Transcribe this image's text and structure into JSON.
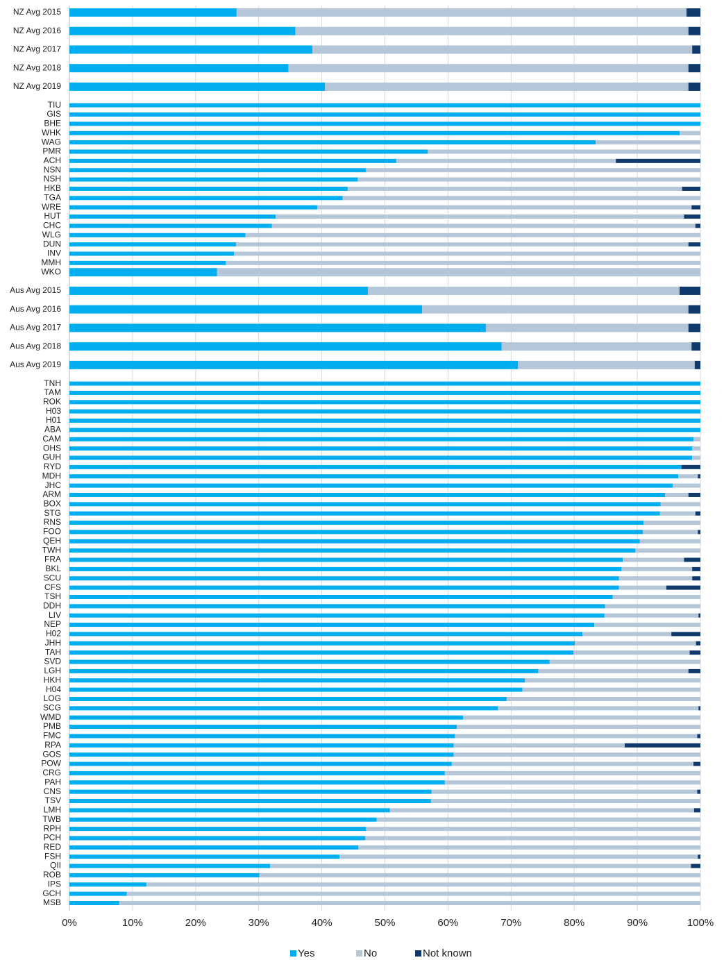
{
  "chart_data": {
    "type": "stacked_barh",
    "categories": [
      "NZ Avg 2015",
      null,
      "NZ Avg 2016",
      null,
      "NZ Avg 2017",
      null,
      "NZ Avg 2018",
      null,
      "NZ Avg 2019",
      null,
      "TIU",
      "GIS",
      "BHE",
      "WHK",
      "WAG",
      "PMR",
      "ACH",
      "NSN",
      "NSH",
      "HKB",
      "TGA",
      "WRE",
      "HUT",
      "CHC",
      "WLG",
      "DUN",
      "INV",
      "MMH",
      "WKO",
      null,
      "Aus Avg 2015",
      null,
      "Aus Avg 2016",
      null,
      "Aus Avg 2017",
      null,
      "Aus Avg 2018",
      null,
      "Aus Avg 2019",
      null,
      "TNH",
      "TAM",
      "ROK",
      "H03",
      "H01",
      "ABA",
      "CAM",
      "OHS",
      "GUH",
      "RYD",
      "MDH",
      "JHC",
      "ARM",
      "BOX",
      "STG",
      "RNS",
      "FOO",
      "QEH",
      "TWH",
      "FRA",
      "BKL",
      "SCU",
      "CFS",
      "TSH",
      "DDH",
      "LIV",
      "NEP",
      "H02",
      "JHH",
      "TAH",
      "SVD",
      "LGH",
      "HKH",
      "H04",
      "LOG",
      "SCG",
      "WMD",
      "PMB",
      "FMC",
      "RPA",
      "GOS",
      "POW",
      "CRG",
      "PAH",
      "CNS",
      "TSV",
      "LMH",
      "TWB",
      "RPH",
      "PCH",
      "RED",
      "FSH",
      "QII",
      "ROB",
      "IPS",
      "GCH",
      "MSB"
    ],
    "series": [
      {
        "name": "Yes",
        "color": "#00aeef",
        "values": [
          26.5,
          null,
          35.8,
          null,
          38.5,
          null,
          34.7,
          null,
          40.5,
          null,
          100,
          100,
          100,
          96.7,
          83.4,
          56.8,
          51.8,
          47,
          45.7,
          44.1,
          43.3,
          39.3,
          32.7,
          32.1,
          27.9,
          26.4,
          26.1,
          24.8,
          23.4,
          null,
          47.3,
          null,
          55.9,
          null,
          66,
          null,
          68.5,
          null,
          71.1,
          null,
          100,
          100,
          100,
          100,
          100,
          100,
          98.9,
          98.7,
          98.7,
          97,
          96.5,
          95.6,
          94.4,
          93.7,
          93.6,
          91,
          90.9,
          90.4,
          89.7,
          87.7,
          87.5,
          87.1,
          87.1,
          86.1,
          84.9,
          84.8,
          83.2,
          81.3,
          80.1,
          79.9,
          76.1,
          74.3,
          72.2,
          71.8,
          69.3,
          67.9,
          62.4,
          61.4,
          61.1,
          60.9,
          60.9,
          60.6,
          59.5,
          59.5,
          57.4,
          57.3,
          50.8,
          48.7,
          47,
          46.9,
          45.8,
          42.8,
          31.8,
          30.1,
          12.2,
          9.1,
          7.9
        ]
      },
      {
        "name": "No",
        "color": "#b4c6d8",
        "values": [
          71.3,
          null,
          62.3,
          null,
          60.2,
          null,
          63.4,
          null,
          57.6,
          null,
          0,
          0,
          0,
          3.3,
          16.6,
          43.2,
          34.8,
          53,
          54.3,
          53,
          56.7,
          59.3,
          64.7,
          67.1,
          72.1,
          71.7,
          73.9,
          75.2,
          76.6,
          null,
          49.4,
          null,
          42.2,
          null,
          32.1,
          null,
          30.1,
          null,
          28,
          null,
          0,
          0,
          0,
          0,
          0,
          0,
          1.1,
          1.3,
          1.3,
          0,
          3.1,
          4.4,
          3.7,
          6.3,
          5.6,
          9,
          8.7,
          9.6,
          10.3,
          9.7,
          11.2,
          11.6,
          7.5,
          13.9,
          15.1,
          14.9,
          16.8,
          14.1,
          19.2,
          18.4,
          23.9,
          23.8,
          27.8,
          28.2,
          30.7,
          31.8,
          37.6,
          38.6,
          38.4,
          27.1,
          39.1,
          38.3,
          40.5,
          40.5,
          42.1,
          42.7,
          48.2,
          51.3,
          53,
          53.1,
          54.2,
          56.8,
          66.7,
          69.9,
          87.8,
          90.9,
          92.1
        ]
      },
      {
        "name": "Not known",
        "color": "#0f3a6b",
        "values": [
          2.2,
          null,
          1.9,
          null,
          1.3,
          null,
          1.9,
          null,
          1.9,
          null,
          0,
          0,
          0,
          0,
          0,
          0,
          13.4,
          0,
          0,
          2.9,
          0,
          1.4,
          2.6,
          0.8,
          0,
          1.9,
          0,
          0,
          0,
          null,
          3.3,
          null,
          1.9,
          null,
          1.9,
          null,
          1.4,
          null,
          0.9,
          null,
          0,
          0,
          0,
          0,
          0,
          0,
          0,
          0,
          0,
          3,
          0.4,
          0,
          1.9,
          0,
          0.8,
          0,
          0.4,
          0,
          0,
          2.6,
          1.3,
          1.3,
          5.4,
          0,
          0,
          0.3,
          0,
          4.6,
          0.7,
          1.7,
          0,
          1.9,
          0,
          0,
          0,
          0.3,
          0,
          0,
          0.5,
          12,
          0,
          1.1,
          0,
          0,
          0.5,
          0,
          1,
          0,
          0,
          0,
          0,
          0.4,
          1.5,
          0,
          0,
          0,
          0
        ]
      }
    ],
    "xlim": [
      0,
      100
    ],
    "xticks": [
      {
        "value": 0,
        "label": "0%"
      },
      {
        "value": 10,
        "label": "10%"
      },
      {
        "value": 20,
        "label": "20%"
      },
      {
        "value": 30,
        "label": "30%"
      },
      {
        "value": 40,
        "label": "40%"
      },
      {
        "value": 50,
        "label": "50%"
      },
      {
        "value": 60,
        "label": "60%"
      },
      {
        "value": 70,
        "label": "70%"
      },
      {
        "value": 80,
        "label": "80%"
      },
      {
        "value": 90,
        "label": "90%"
      },
      {
        "value": 100,
        "label": "100%"
      }
    ],
    "grid": true,
    "legend": "bottom"
  }
}
